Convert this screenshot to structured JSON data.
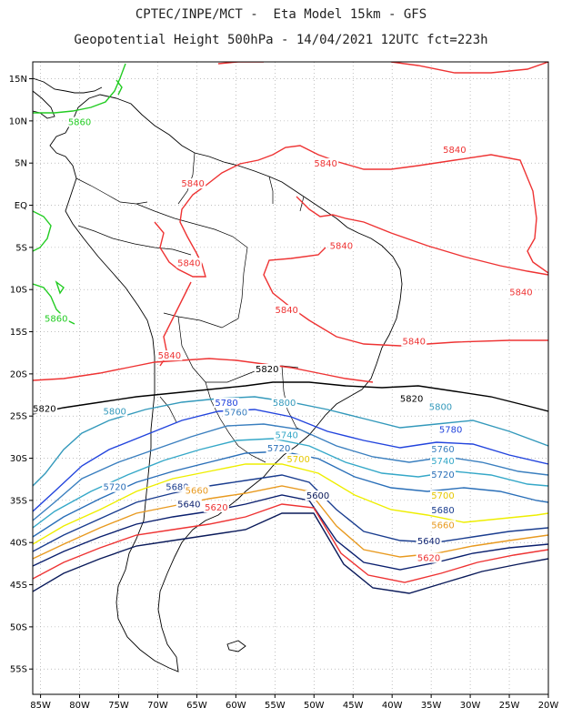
{
  "title": {
    "line1": "CPTEC/INPE/MCT -  Eta Model 15km - GFS",
    "line2": "Geopotential Height 500hPa - 14/04/2021 12UTC fct=223h"
  },
  "map_data": {
    "type": "contour-map",
    "lon_range": [
      -86,
      -20
    ],
    "lat_range": [
      -58,
      17
    ],
    "lon_ticks": [
      "85W",
      "80W",
      "75W",
      "70W",
      "65W",
      "60W",
      "55W",
      "50W",
      "45W",
      "40W",
      "35W",
      "30W",
      "25W",
      "20W"
    ],
    "lat_ticks": [
      "15N",
      "10N",
      "5N",
      "EQ",
      "5S",
      "10S",
      "15S",
      "20S",
      "25S",
      "30S",
      "35S",
      "40S",
      "45S",
      "50S",
      "55S"
    ],
    "grid": true,
    "colors": {
      "coast": "#000000",
      "c5860": "#22cc22",
      "c5840": "#ee3333",
      "c5820": "#000000",
      "c5800": "#3399bb",
      "c5780": "#2244dd",
      "c5760": "#3a7fbf",
      "c5740": "#35a8c8",
      "c5720": "#2a6fb8",
      "c5700": "#eeee00",
      "c5680": "#1a3d8f",
      "c5660": "#e89a20",
      "c5640": "#0a1f6e",
      "c5620": "#ee3333",
      "c5600": "#0a1a5a"
    },
    "labels": [
      {
        "text": "5860",
        "color": "#22cc22",
        "lon": -80,
        "lat": 9.5
      },
      {
        "text": "5860",
        "color": "#22cc22",
        "lon": -83,
        "lat": -13.8
      },
      {
        "text": "5840",
        "color": "#ee3333",
        "lon": -65.5,
        "lat": 2.2
      },
      {
        "text": "5840",
        "color": "#ee3333",
        "lon": -48.5,
        "lat": 4.6
      },
      {
        "text": "5840",
        "color": "#ee3333",
        "lon": -32,
        "lat": 6.2
      },
      {
        "text": "5840",
        "color": "#ee3333",
        "lon": -46.5,
        "lat": -5.2
      },
      {
        "text": "5840",
        "color": "#ee3333",
        "lon": -66,
        "lat": -7.2
      },
      {
        "text": "5840",
        "color": "#ee3333",
        "lon": -53.5,
        "lat": -12.8
      },
      {
        "text": "5840",
        "color": "#ee3333",
        "lon": -37.2,
        "lat": -16.5
      },
      {
        "text": "5840",
        "color": "#ee3333",
        "lon": -23.5,
        "lat": -10.7
      },
      {
        "text": "5840",
        "color": "#ee3333",
        "lon": -68.5,
        "lat": -18.2
      },
      {
        "text": "5820",
        "color": "#000000",
        "lon": -56,
        "lat": -19.8
      },
      {
        "text": "5820",
        "color": "#000000",
        "lon": -84.5,
        "lat": -24.5
      },
      {
        "text": "5820",
        "color": "#000000",
        "lon": -37.5,
        "lat": -23.3
      },
      {
        "text": "5800",
        "color": "#3399bb",
        "lon": -53.8,
        "lat": -23.8
      },
      {
        "text": "5800",
        "color": "#3399bb",
        "lon": -75.5,
        "lat": -24.8
      },
      {
        "text": "5800",
        "color": "#3399bb",
        "lon": -33.8,
        "lat": -24.3
      },
      {
        "text": "5780",
        "color": "#2244dd",
        "lon": -61.2,
        "lat": -23.8
      },
      {
        "text": "5780",
        "color": "#2244dd",
        "lon": -32.5,
        "lat": -27
      },
      {
        "text": "5760",
        "color": "#3a7fbf",
        "lon": -60,
        "lat": -24.9
      },
      {
        "text": "5760",
        "color": "#3a7fbf",
        "lon": -33.5,
        "lat": -29.3
      },
      {
        "text": "5740",
        "color": "#35a8c8",
        "lon": -53.5,
        "lat": -27.6
      },
      {
        "text": "5740",
        "color": "#35a8c8",
        "lon": -33.5,
        "lat": -30.7
      },
      {
        "text": "5720",
        "color": "#2a6fb8",
        "lon": -54.5,
        "lat": -29.2
      },
      {
        "text": "5720",
        "color": "#2a6fb8",
        "lon": -75.5,
        "lat": -33.8
      },
      {
        "text": "5720",
        "color": "#2a6fb8",
        "lon": -33.5,
        "lat": -32.3
      },
      {
        "text": "5700",
        "color": "#e6c800",
        "lon": -52,
        "lat": -30.5
      },
      {
        "text": "5700",
        "color": "#e6c800",
        "lon": -33.5,
        "lat": -34.8
      },
      {
        "text": "5680",
        "color": "#1a3d8f",
        "lon": -67.5,
        "lat": -33.8
      },
      {
        "text": "5680",
        "color": "#1a3d8f",
        "lon": -33.5,
        "lat": -36.5
      },
      {
        "text": "5660",
        "color": "#e89a20",
        "lon": -65,
        "lat": -34.2
      },
      {
        "text": "5660",
        "color": "#e89a20",
        "lon": -33.5,
        "lat": -38.3
      },
      {
        "text": "5640",
        "color": "#0a1f6e",
        "lon": -66,
        "lat": -35.8
      },
      {
        "text": "5640",
        "color": "#0a1f6e",
        "lon": -35.3,
        "lat": -40.2
      },
      {
        "text": "5620",
        "color": "#ee3333",
        "lon": -62.5,
        "lat": -36.2
      },
      {
        "text": "5620",
        "color": "#ee3333",
        "lon": -35.3,
        "lat": -42.2
      },
      {
        "text": "5600",
        "color": "#0a1a5a",
        "lon": -49.5,
        "lat": -34.8
      }
    ]
  }
}
